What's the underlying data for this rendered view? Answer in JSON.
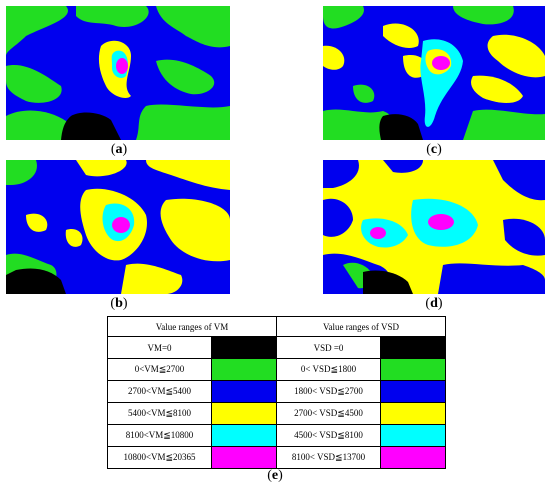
{
  "panels": [
    {
      "id": "a",
      "caption_prefix": "(",
      "caption_letter": "a",
      "caption_suffix": ")"
    },
    {
      "id": "c",
      "caption_prefix": "(",
      "caption_letter": "c",
      "caption_suffix": ")"
    },
    {
      "id": "b",
      "caption_prefix": "(",
      "caption_letter": "b",
      "caption_suffix": ")"
    },
    {
      "id": "d",
      "caption_prefix": "(",
      "caption_letter": "d",
      "caption_suffix": ")"
    }
  ],
  "legend": {
    "header_vm": "Value ranges of VM",
    "header_vsd": "Value ranges of VSD",
    "rows": [
      {
        "vm": "VM=0",
        "vsd": "VSD =0",
        "color": "#000000"
      },
      {
        "vm": "0<VM≦2700",
        "vsd": "0< VSD≦1800",
        "color": "#22dd22"
      },
      {
        "vm": "2700<VM≦5400",
        "vsd": "1800< VSD≦2700",
        "color": "#0000ee"
      },
      {
        "vm": "5400<VM≦8100",
        "vsd": "2700< VSD≦4500",
        "color": "#ffff00"
      },
      {
        "vm": "8100<VM≦10800",
        "vsd": "4500< VSD≦8100",
        "color": "#00ffff"
      },
      {
        "vm": "10800<VM≦20365",
        "vsd": "8100< VSD≦13700",
        "color": "#ff00ff"
      }
    ]
  },
  "figure_caption": {
    "prefix": "(",
    "letter": "e",
    "suffix": ")"
  },
  "colors": {
    "black": "#000000",
    "green": "#22dd22",
    "blue": "#0000ee",
    "yellow": "#ffff00",
    "cyan": "#00ffff",
    "magenta": "#ff00ff"
  }
}
